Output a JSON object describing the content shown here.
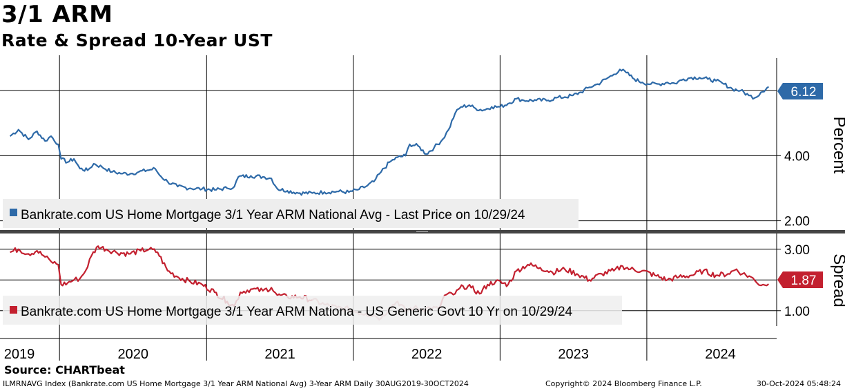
{
  "header": {
    "title": "3/1 ARM",
    "subtitle": "Rate & Spread 10-Year UST"
  },
  "footer": {
    "source": "Source: CHARTbeat",
    "index_info": "ILMRNAVG Index (Bankrate.com US Home Mortgage 3/1 Year ARM National Avg) 3-Year ARM  Daily 30AUG2019-30OCT2024",
    "copyright": "Copyright© 2024 Bloomberg Finance L.P.",
    "timestamp": "30-Oct-2024 05:48:24"
  },
  "colors": {
    "rate_line": "#2e6aa8",
    "spread_line": "#c3202f",
    "spread_faded": "#d88a93",
    "grid": "#000000",
    "legend_bg": "#eeeeee"
  },
  "chart_data": [
    {
      "type": "line",
      "panel": "top",
      "ylabel": "Percent",
      "ylim": [
        1.8,
        7.0
      ],
      "yticks": [
        "2.00",
        "4.00"
      ],
      "grid": true,
      "x_axis": [
        "2019",
        "2020",
        "2021",
        "2022",
        "2023",
        "2024"
      ],
      "legend": "Bankrate.com US Home Mortgage 3/1 Year ARM National Avg - Last Price on 10/29/24",
      "last_value_label": "6.12",
      "series": [
        {
          "name": "Bankrate.com US Home Mortgage 3/1 Year ARM National Avg",
          "points": [
            [
              "2019-08-30",
              4.6
            ],
            [
              "2019-09-20",
              4.8
            ],
            [
              "2019-10-15",
              4.5
            ],
            [
              "2019-11-05",
              4.75
            ],
            [
              "2019-11-25",
              4.45
            ],
            [
              "2019-12-10",
              4.6
            ],
            [
              "2019-12-28",
              4.35
            ],
            [
              "2020-01-04",
              3.9
            ],
            [
              "2020-01-20",
              3.8
            ],
            [
              "2020-02-05",
              3.9
            ],
            [
              "2020-02-20",
              3.6
            ],
            [
              "2020-03-10",
              3.55
            ],
            [
              "2020-03-25",
              3.75
            ],
            [
              "2020-04-15",
              3.65
            ],
            [
              "2020-05-10",
              3.5
            ],
            [
              "2020-06-05",
              3.45
            ],
            [
              "2020-06-25",
              3.45
            ],
            [
              "2020-07-15",
              3.5
            ],
            [
              "2020-08-05",
              3.55
            ],
            [
              "2020-08-25",
              3.6
            ],
            [
              "2020-09-05",
              3.4
            ],
            [
              "2020-09-25",
              3.2
            ],
            [
              "2020-10-20",
              3.05
            ],
            [
              "2020-11-20",
              3.0
            ],
            [
              "2020-12-20",
              2.98
            ],
            [
              "2021-01-20",
              2.95
            ],
            [
              "2021-02-20",
              3.0
            ],
            [
              "2021-03-10",
              3.05
            ],
            [
              "2021-03-20",
              3.35
            ],
            [
              "2021-04-20",
              3.38
            ],
            [
              "2021-05-20",
              3.35
            ],
            [
              "2021-06-10",
              3.3
            ],
            [
              "2021-06-25",
              2.98
            ],
            [
              "2021-07-20",
              2.92
            ],
            [
              "2021-08-20",
              2.85
            ],
            [
              "2021-09-20",
              2.85
            ],
            [
              "2021-10-20",
              2.88
            ],
            [
              "2021-11-20",
              2.9
            ],
            [
              "2021-12-20",
              2.88
            ],
            [
              "2022-01-10",
              2.95
            ],
            [
              "2022-01-31",
              3.05
            ],
            [
              "2022-02-20",
              3.2
            ],
            [
              "2022-03-10",
              3.5
            ],
            [
              "2022-03-31",
              3.8
            ],
            [
              "2022-04-20",
              3.95
            ],
            [
              "2022-05-10",
              4.0
            ],
            [
              "2022-05-20",
              4.35
            ],
            [
              "2022-06-10",
              4.3
            ],
            [
              "2022-06-30",
              4.05
            ],
            [
              "2022-07-20",
              4.25
            ],
            [
              "2022-08-10",
              4.5
            ],
            [
              "2022-08-25",
              4.8
            ],
            [
              "2022-09-10",
              5.3
            ],
            [
              "2022-09-25",
              5.5
            ],
            [
              "2022-10-15",
              5.55
            ],
            [
              "2022-10-31",
              5.45
            ],
            [
              "2022-11-20",
              5.4
            ],
            [
              "2022-12-10",
              5.5
            ],
            [
              "2022-12-31",
              5.5
            ],
            [
              "2023-01-20",
              5.6
            ],
            [
              "2023-02-10",
              5.75
            ],
            [
              "2023-02-28",
              5.7
            ],
            [
              "2023-03-31",
              5.7
            ],
            [
              "2023-04-30",
              5.7
            ],
            [
              "2023-05-20",
              5.78
            ],
            [
              "2023-06-10",
              5.8
            ],
            [
              "2023-06-30",
              5.85
            ],
            [
              "2023-07-20",
              5.95
            ],
            [
              "2023-08-10",
              6.1
            ],
            [
              "2023-08-31",
              6.2
            ],
            [
              "2023-09-20",
              6.35
            ],
            [
              "2023-10-10",
              6.5
            ],
            [
              "2023-10-25",
              6.65
            ],
            [
              "2023-11-10",
              6.55
            ],
            [
              "2023-11-30",
              6.35
            ],
            [
              "2023-12-20",
              6.25
            ],
            [
              "2024-01-10",
              6.2
            ],
            [
              "2024-01-31",
              6.2
            ],
            [
              "2024-02-20",
              6.25
            ],
            [
              "2024-03-10",
              6.22
            ],
            [
              "2024-03-31",
              6.35
            ],
            [
              "2024-04-20",
              6.4
            ],
            [
              "2024-05-10",
              6.4
            ],
            [
              "2024-05-31",
              6.35
            ],
            [
              "2024-06-20",
              6.3
            ],
            [
              "2024-07-10",
              6.2
            ],
            [
              "2024-07-31",
              6.05
            ],
            [
              "2024-08-20",
              6.0
            ],
            [
              "2024-09-10",
              5.85
            ],
            [
              "2024-09-25",
              5.78
            ],
            [
              "2024-10-10",
              5.95
            ],
            [
              "2024-10-29",
              6.12
            ]
          ]
        }
      ]
    },
    {
      "type": "line",
      "panel": "bottom",
      "ylabel": "Spread",
      "ylim": [
        0.5,
        3.4
      ],
      "yticks": [
        "1.00",
        "3.00"
      ],
      "grid": true,
      "x_axis": [
        "2019",
        "2020",
        "2021",
        "2022",
        "2023",
        "2024"
      ],
      "legend": "Bankrate.com US Home Mortgage 3/1 Year ARM Nationa - US Generic Govt 10 Yr on 10/29/24",
      "last_value_label": "1.87",
      "series": [
        {
          "name": "Bankrate.com US Home Mortgage 3/1 Year ARM Nationa - US Generic Govt 10 Yr",
          "points": [
            [
              "2019-08-30",
              2.9
            ],
            [
              "2019-09-20",
              3.0
            ],
            [
              "2019-10-15",
              2.85
            ],
            [
              "2019-11-05",
              2.95
            ],
            [
              "2019-11-25",
              2.75
            ],
            [
              "2019-12-10",
              2.6
            ],
            [
              "2019-12-28",
              2.5
            ],
            [
              "2020-01-04",
              1.85
            ],
            [
              "2020-01-20",
              1.9
            ],
            [
              "2020-02-05",
              2.0
            ],
            [
              "2020-02-20",
              2.05
            ],
            [
              "2020-03-05",
              2.3
            ],
            [
              "2020-03-20",
              2.8
            ],
            [
              "2020-04-05",
              3.1
            ],
            [
              "2020-04-25",
              3.0
            ],
            [
              "2020-05-20",
              2.9
            ],
            [
              "2020-06-20",
              2.85
            ],
            [
              "2020-07-20",
              2.95
            ],
            [
              "2020-08-10",
              3.0
            ],
            [
              "2020-08-31",
              2.9
            ],
            [
              "2020-09-25",
              2.3
            ],
            [
              "2020-10-20",
              2.1
            ],
            [
              "2020-11-20",
              1.95
            ],
            [
              "2020-12-20",
              1.85
            ],
            [
              "2021-01-20",
              1.6
            ],
            [
              "2021-02-20",
              1.3
            ],
            [
              "2021-03-10",
              1.15
            ],
            [
              "2021-03-25",
              1.6
            ],
            [
              "2021-04-20",
              1.7
            ],
            [
              "2021-05-20",
              1.65
            ],
            [
              "2021-06-10",
              1.75
            ],
            [
              "2021-06-25",
              1.5
            ],
            [
              "2021-07-20",
              1.45
            ],
            [
              "2021-08-20",
              1.45
            ],
            [
              "2021-09-20",
              1.35
            ]
          ]
        },
        {
          "name": "faded segment",
          "faded": true,
          "points": [
            [
              "2021-09-20",
              1.35
            ],
            [
              "2021-10-20",
              1.2
            ],
            [
              "2021-11-20",
              1.1
            ],
            [
              "2021-12-20",
              1.05
            ],
            [
              "2022-01-10",
              0.95
            ],
            [
              "2022-01-31",
              0.9
            ],
            [
              "2022-02-20",
              0.85
            ],
            [
              "2022-03-10",
              0.75
            ],
            [
              "2022-03-31",
              1.1
            ],
            [
              "2022-04-20",
              1.3
            ],
            [
              "2022-05-10",
              1.0
            ],
            [
              "2022-05-31",
              1.1
            ],
            [
              "2022-06-20",
              1.05
            ],
            [
              "2022-07-10",
              1.1
            ],
            [
              "2022-07-31",
              1.05
            ]
          ]
        },
        {
          "name": "recent segment",
          "points": [
            [
              "2022-07-31",
              1.05
            ],
            [
              "2022-08-15",
              1.5
            ],
            [
              "2022-09-10",
              1.55
            ],
            [
              "2022-09-30",
              1.8
            ],
            [
              "2022-10-20",
              1.75
            ],
            [
              "2022-11-10",
              1.55
            ],
            [
              "2022-11-30",
              1.85
            ],
            [
              "2022-12-20",
              1.95
            ],
            [
              "2023-01-20",
              1.85
            ],
            [
              "2023-02-10",
              2.3
            ],
            [
              "2023-03-10",
              2.5
            ],
            [
              "2023-04-10",
              2.4
            ],
            [
              "2023-05-10",
              2.25
            ],
            [
              "2023-06-10",
              2.35
            ],
            [
              "2023-07-10",
              2.2
            ],
            [
              "2023-08-10",
              2.0
            ],
            [
              "2023-09-10",
              2.2
            ],
            [
              "2023-10-10",
              2.3
            ],
            [
              "2023-11-01",
              2.45
            ],
            [
              "2023-11-20",
              2.35
            ],
            [
              "2023-12-20",
              2.3
            ],
            [
              "2024-01-20",
              2.15
            ],
            [
              "2024-02-20",
              2.0
            ],
            [
              "2024-03-20",
              2.1
            ],
            [
              "2024-04-20",
              2.15
            ],
            [
              "2024-05-20",
              2.3
            ],
            [
              "2024-06-20",
              2.15
            ],
            [
              "2024-07-20",
              2.2
            ],
            [
              "2024-08-10",
              2.35
            ],
            [
              "2024-08-25",
              2.2
            ],
            [
              "2024-09-15",
              2.1
            ],
            [
              "2024-09-30",
              1.9
            ],
            [
              "2024-10-15",
              1.85
            ],
            [
              "2024-10-29",
              1.87
            ]
          ]
        }
      ]
    }
  ]
}
